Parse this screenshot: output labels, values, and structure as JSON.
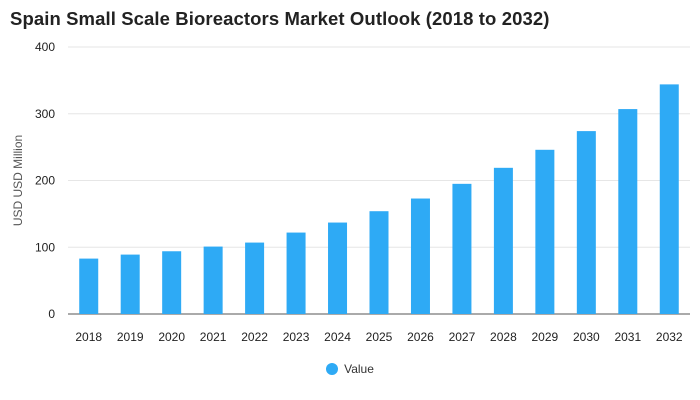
{
  "chart_data": {
    "type": "bar",
    "title": "Spain Small Scale Bioreactors Market Outlook (2018 to 2032)",
    "xlabel": "",
    "ylabel": "USD USD Million",
    "categories": [
      "2018",
      "2019",
      "2020",
      "2021",
      "2022",
      "2023",
      "2024",
      "2025",
      "2026",
      "2027",
      "2028",
      "2029",
      "2030",
      "2031",
      "2032"
    ],
    "series": [
      {
        "name": "Value",
        "color": "#2eaaf5",
        "values": [
          83,
          89,
          94,
          101,
          107,
          122,
          137,
          154,
          173,
          195,
          219,
          246,
          274,
          307,
          344
        ]
      }
    ],
    "ylim": [
      0,
      400
    ],
    "yticks": [
      0,
      100,
      200,
      300,
      400
    ],
    "grid": true,
    "legend_position": "bottom-center"
  }
}
